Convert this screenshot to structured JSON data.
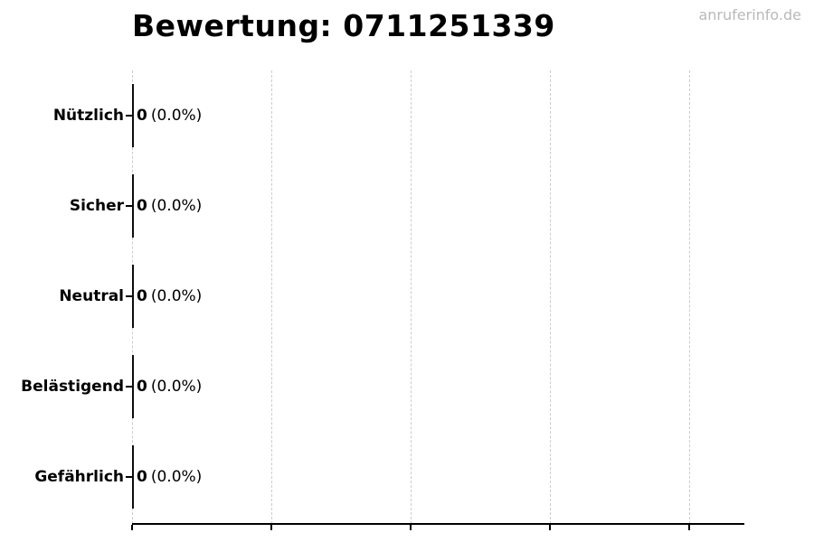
{
  "title": "Bewertung: 0711251339",
  "watermark": "anruferinfo.de",
  "colors": {
    "text": "#000000",
    "watermark": "#b9b9b9",
    "gridline": "#cccccc",
    "axis": "#000000",
    "bar": "#0d0d0d",
    "background": "#ffffff"
  },
  "chart_data": {
    "type": "bar",
    "orientation": "horizontal",
    "title": "Bewertung: 0711251339",
    "categories": [
      "Nützlich",
      "Sicher",
      "Neutral",
      "Belästigend",
      "Gefährlich"
    ],
    "values": [
      0,
      0,
      0,
      0,
      0
    ],
    "percentages": [
      0.0,
      0.0,
      0.0,
      0.0,
      0.0
    ],
    "value_labels": [
      "0 (0.0%)",
      "0 (0.0%)",
      "0 (0.0%)",
      "0 (0.0%)",
      "0 (0.0%)"
    ],
    "xlabel": "",
    "ylabel": "",
    "x_tick_labels": [],
    "grid": "vertical-dashed",
    "legend": "none",
    "rows": [
      {
        "label": "Nützlich",
        "count": "0",
        "pct": "(0.0%)"
      },
      {
        "label": "Sicher",
        "count": "0",
        "pct": "(0.0%)"
      },
      {
        "label": "Neutral",
        "count": "0",
        "pct": "(0.0%)"
      },
      {
        "label": "Belästigend",
        "count": "0",
        "pct": "(0.0%)"
      },
      {
        "label": "Gefährlich",
        "count": "0",
        "pct": "(0.0%)"
      }
    ]
  }
}
